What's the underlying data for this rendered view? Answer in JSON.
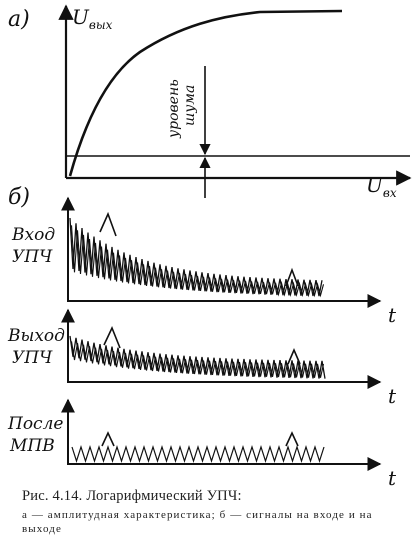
{
  "panel_a": {
    "tag": "а)",
    "y_label": "U",
    "y_sub": "вых",
    "x_label": "U",
    "x_sub": "вх",
    "noise_label_1": "уровень",
    "noise_label_2": "шума"
  },
  "panel_b": {
    "tag": "б)",
    "rows": [
      {
        "label_1": "Вход",
        "label_2": "УПЧ",
        "axis": "t"
      },
      {
        "label_1": "Выход",
        "label_2": "УПЧ",
        "axis": "t"
      },
      {
        "label_1": "После",
        "label_2": "МПВ",
        "axis": "t"
      }
    ]
  },
  "caption": {
    "title": "Рис. 4.14. Логарифмический УПЧ:",
    "sub": "а — амплитудная характеристика; б — сигналы на входе и на выходе"
  }
}
